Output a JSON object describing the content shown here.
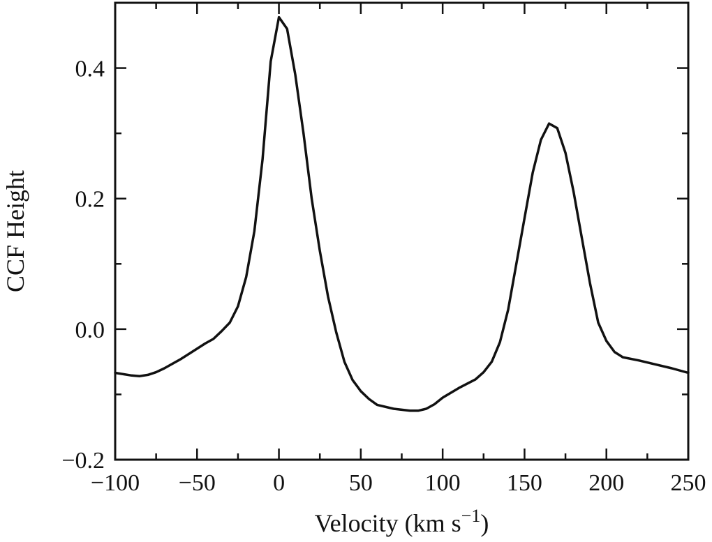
{
  "chart_data": {
    "type": "line",
    "xlabel": "Velocity (km s",
    "xlabel_sup": "−1",
    "xlabel_close": ")",
    "ylabel": "CCF Height",
    "xlim": [
      -100,
      250
    ],
    "ylim": [
      -0.2,
      0.5
    ],
    "x_major_ticks": [
      -100,
      -50,
      0,
      50,
      100,
      150,
      200,
      250
    ],
    "x_tick_labels": [
      "−100",
      "−50",
      "0",
      "50",
      "100",
      "150",
      "200",
      "250"
    ],
    "y_major_ticks": [
      -0.2,
      0.0,
      0.2,
      0.4
    ],
    "y_tick_labels": [
      "−0.2",
      "0.0",
      "0.2",
      "0.4"
    ],
    "x_minor_step": 25,
    "y_minor_step": 0.1,
    "grid": false,
    "series": [
      {
        "x": [
          -100,
          -90,
          -85,
          -80,
          -75,
          -70,
          -60,
          -50,
          -45,
          -40,
          -35,
          -30,
          -25,
          -20,
          -15,
          -10,
          -5,
          0,
          5,
          10,
          15,
          20,
          25,
          30,
          35,
          40,
          45,
          50,
          55,
          60,
          70,
          80,
          85,
          90,
          95,
          100,
          110,
          120,
          125,
          130,
          135,
          140,
          145,
          150,
          155,
          160,
          165,
          170,
          175,
          180,
          185,
          190,
          195,
          200,
          205,
          210,
          220,
          230,
          240,
          250
        ],
        "y": [
          -0.067,
          -0.071,
          -0.072,
          -0.07,
          -0.066,
          -0.06,
          -0.046,
          -0.03,
          -0.022,
          -0.015,
          -0.003,
          0.01,
          0.035,
          0.08,
          0.15,
          0.26,
          0.41,
          0.478,
          0.46,
          0.39,
          0.3,
          0.2,
          0.12,
          0.05,
          -0.005,
          -0.05,
          -0.078,
          -0.095,
          -0.107,
          -0.116,
          -0.122,
          -0.125,
          -0.125,
          -0.122,
          -0.115,
          -0.105,
          -0.09,
          -0.077,
          -0.066,
          -0.05,
          -0.02,
          0.03,
          0.1,
          0.17,
          0.24,
          0.29,
          0.315,
          0.308,
          0.27,
          0.21,
          0.14,
          0.07,
          0.01,
          -0.018,
          -0.035,
          -0.043,
          -0.048,
          -0.054,
          -0.06,
          -0.067
        ]
      }
    ]
  }
}
